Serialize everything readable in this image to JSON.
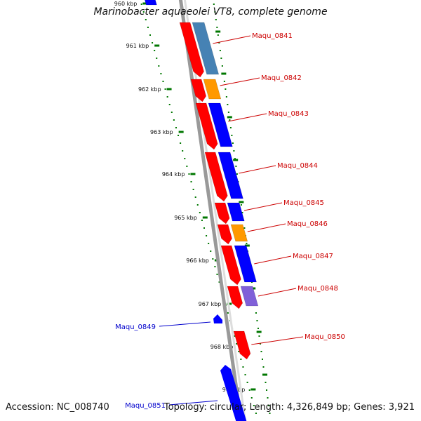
{
  "title": "Marinobacter aquaeolei VT8, complete genome",
  "footer": {
    "accession": "Accession: NC_008740",
    "summary": "Topology: circular; Length: 4,326,849 bp; Genes: 3,921"
  },
  "colors": {
    "red": "#ff0000",
    "blue": "#0000ff",
    "steelblue": "#4682b4",
    "orange": "#ff9900",
    "purple": "#8060d8",
    "backbone": "#999999",
    "tick": "#007700",
    "label_red": "#cc0000",
    "label_blue": "#0000cc"
  },
  "ruler": {
    "tick_labels": [
      "960 kbp",
      "961 kbp",
      "962 kbp",
      "963 kbp",
      "964 kbp",
      "965 kbp",
      "966 kbp",
      "967 kbp",
      "968 kbp",
      "969 kbp"
    ]
  },
  "genes": [
    {
      "label": "Maqu_0841",
      "color": "red",
      "fill": "steelblue"
    },
    {
      "label": "Maqu_0842",
      "color": "red",
      "fill": "orange"
    },
    {
      "label": "Maqu_0843",
      "color": "red",
      "fill": "blue"
    },
    {
      "label": "Maqu_0844",
      "color": "red",
      "fill": "blue"
    },
    {
      "label": "Maqu_0845",
      "color": "red",
      "fill": "blue"
    },
    {
      "label": "Maqu_0846",
      "color": "red",
      "fill": "orange"
    },
    {
      "label": "Maqu_0847",
      "color": "red",
      "fill": "blue"
    },
    {
      "label": "Maqu_0848",
      "color": "red",
      "fill": "purple"
    },
    {
      "label": "Maqu_0849",
      "color": "blue",
      "fill": "blue"
    },
    {
      "label": "Maqu_0850",
      "color": "red",
      "fill": "red"
    },
    {
      "label": "Maqu_0851",
      "color": "blue",
      "fill": "blue"
    }
  ]
}
